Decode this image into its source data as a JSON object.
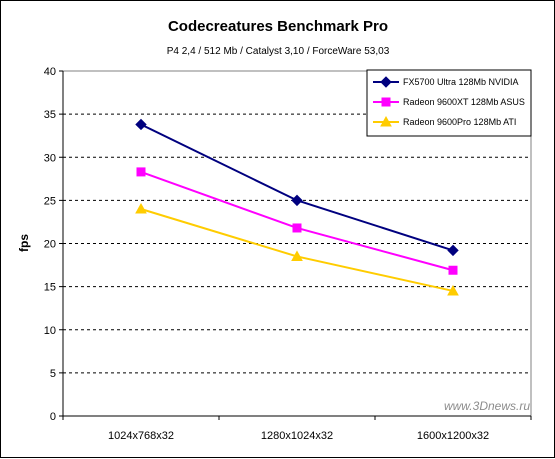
{
  "chart_data": {
    "type": "line",
    "title": "Codecreatures Benchmark Pro",
    "subtitle": "P4 2,4 / 512 Mb / Catalyst 3,10 / ForceWare 53,03",
    "xlabel": "",
    "ylabel": "fps",
    "categories": [
      "1024x768x32",
      "1280x1024x32",
      "1600x1200x32"
    ],
    "ylim": [
      0,
      40
    ],
    "yticks": [
      0,
      5,
      10,
      15,
      20,
      25,
      30,
      35,
      40
    ],
    "grid": "horizontal dashed",
    "legend_position": "top-right",
    "series": [
      {
        "name": "FX5700 Ultra 128Mb NVIDIA",
        "values": [
          33.8,
          25.0,
          19.2
        ],
        "color": "#00007f",
        "marker": "diamond"
      },
      {
        "name": "Radeon 9600XT 128Mb ASUS",
        "values": [
          28.3,
          21.8,
          16.9
        ],
        "color": "#ff00ff",
        "marker": "square"
      },
      {
        "name": "Radeon 9600Pro 128Mb ATI",
        "values": [
          24.0,
          18.5,
          14.5
        ],
        "color": "#ffcc00",
        "marker": "triangle"
      }
    ]
  },
  "watermark": "www.3Dnews.ru"
}
